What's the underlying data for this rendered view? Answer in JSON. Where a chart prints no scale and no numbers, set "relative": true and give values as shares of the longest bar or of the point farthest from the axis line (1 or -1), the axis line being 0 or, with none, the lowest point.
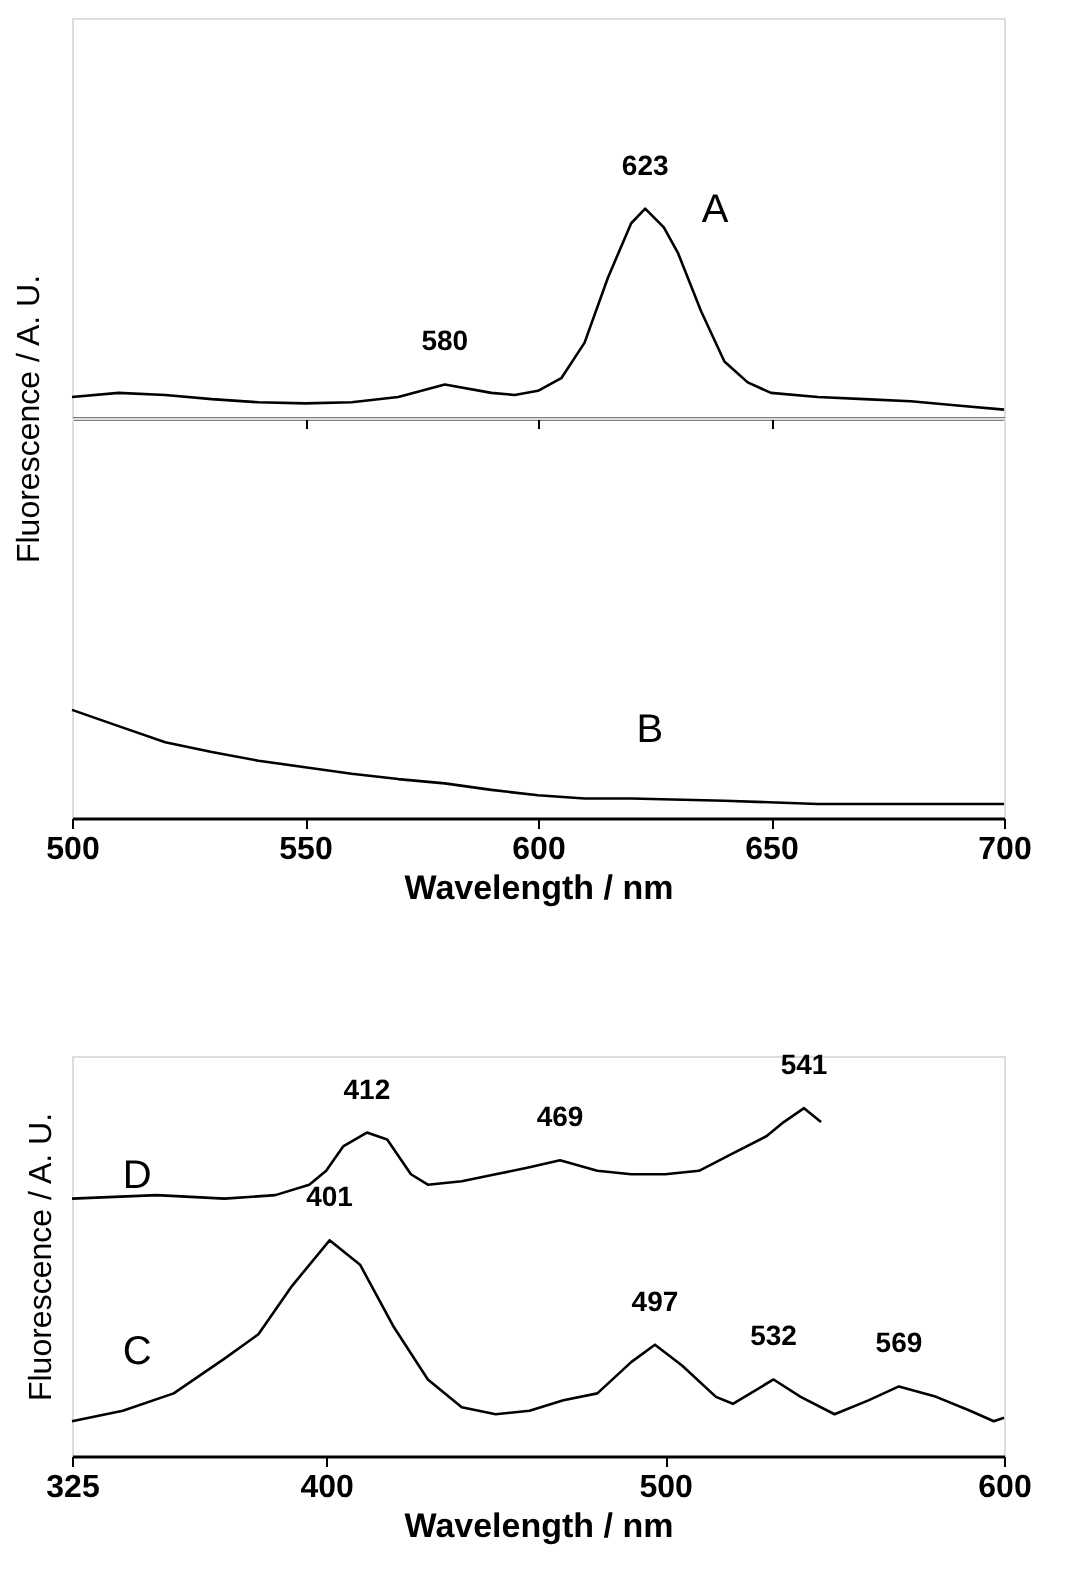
{
  "chart_data": [
    {
      "type": "line",
      "relative": true,
      "ylabel": "Fluorescence / A. U.",
      "xlim": [
        500,
        700
      ],
      "xticks": [
        500,
        550,
        600,
        650,
        700
      ],
      "tick_labels": false,
      "series": [
        {
          "name": "A",
          "color": "#000000",
          "x": [
            500,
            510,
            520,
            530,
            540,
            550,
            560,
            570,
            580,
            590,
            595,
            600,
            605,
            610,
            615,
            620,
            623,
            627,
            630,
            635,
            640,
            645,
            650,
            660,
            670,
            680,
            690,
            700
          ],
          "values": [
            0.1,
            0.12,
            0.11,
            0.09,
            0.075,
            0.07,
            0.075,
            0.1,
            0.16,
            0.12,
            0.11,
            0.13,
            0.19,
            0.36,
            0.67,
            0.93,
            1.0,
            0.91,
            0.79,
            0.51,
            0.27,
            0.17,
            0.12,
            0.1,
            0.09,
            0.08,
            0.06,
            0.04
          ]
        }
      ],
      "annotations": [
        {
          "text": "580",
          "x": 580,
          "y": 0.16
        },
        {
          "text": "623",
          "x": 623,
          "y": 1.0
        }
      ]
    },
    {
      "type": "line",
      "relative": true,
      "xlabel": "Wavelength / nm",
      "xlim": [
        500,
        700
      ],
      "xticks": [
        500,
        550,
        600,
        650,
        700
      ],
      "tick_labels": "x",
      "series": [
        {
          "name": "B",
          "color": "#000000",
          "x": [
            500,
            510,
            520,
            530,
            540,
            550,
            560,
            570,
            580,
            590,
            600,
            610,
            620,
            640,
            660,
            680,
            700
          ],
          "values": [
            1.0,
            0.85,
            0.7,
            0.61,
            0.53,
            0.47,
            0.41,
            0.36,
            0.32,
            0.26,
            0.21,
            0.18,
            0.18,
            0.16,
            0.13,
            0.13,
            0.13
          ]
        }
      ]
    },
    {
      "type": "line",
      "relative": true,
      "xlabel": "Wavelength / nm",
      "ylabel": "Fluorescence / A. U.",
      "xlim": [
        325,
        600
      ],
      "xticks": [
        325,
        400,
        500,
        600
      ],
      "tick_labels": "x",
      "series": [
        {
          "name": "D",
          "color": "#000000",
          "x": [
            325,
            350,
            370,
            385,
            395,
            400,
            405,
            412,
            418,
            425,
            430,
            440,
            450,
            460,
            469,
            480,
            490,
            500,
            510,
            520,
            530,
            535,
            541,
            546
          ],
          "values": [
            0.74,
            0.75,
            0.74,
            0.75,
            0.78,
            0.82,
            0.89,
            0.93,
            0.91,
            0.81,
            0.78,
            0.79,
            0.81,
            0.83,
            0.85,
            0.82,
            0.81,
            0.81,
            0.82,
            0.87,
            0.92,
            0.96,
            1.0,
            0.96
          ]
        },
        {
          "name": "C",
          "color": "#000000",
          "x": [
            325,
            340,
            355,
            370,
            380,
            390,
            401,
            410,
            420,
            430,
            440,
            450,
            460,
            470,
            480,
            490,
            497,
            505,
            515,
            520,
            532,
            540,
            550,
            560,
            569,
            580,
            590,
            597,
            600
          ],
          "values": [
            0.1,
            0.13,
            0.18,
            0.28,
            0.35,
            0.49,
            0.62,
            0.55,
            0.37,
            0.22,
            0.14,
            0.12,
            0.13,
            0.16,
            0.18,
            0.27,
            0.32,
            0.26,
            0.17,
            0.15,
            0.22,
            0.17,
            0.12,
            0.16,
            0.2,
            0.17,
            0.13,
            0.1,
            0.11
          ]
        }
      ],
      "annotations": [
        {
          "text": "412",
          "x": 412,
          "y": 0.93
        },
        {
          "text": "469",
          "x": 469,
          "y": 0.85
        },
        {
          "text": "541",
          "x": 541,
          "y": 1.0
        },
        {
          "text": "401",
          "x": 401,
          "y": 0.62
        },
        {
          "text": "497",
          "x": 497,
          "y": 0.32
        },
        {
          "text": "532",
          "x": 532,
          "y": 0.22
        },
        {
          "text": "569",
          "x": 569,
          "y": 0.2
        }
      ]
    }
  ]
}
